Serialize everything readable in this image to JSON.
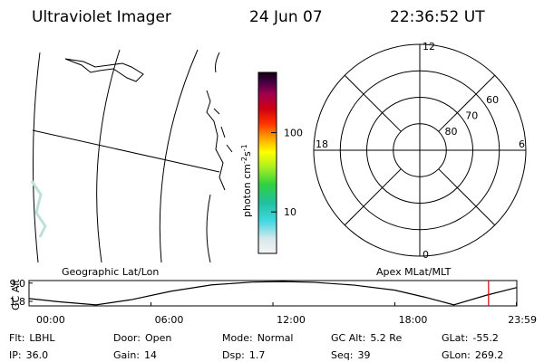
{
  "header": {
    "title": "Ultraviolet Imager",
    "date": "24 Jun 07",
    "time": "22:36:52 UT"
  },
  "colorbar": {
    "label": "photon cm",
    "label_exp1": "-2",
    "label_unit2": "s",
    "label_exp2": "-1",
    "scale": "log",
    "lim": [
      3,
      575
    ],
    "ticks": [
      10,
      100
    ]
  },
  "polar": {
    "rlim": [
      90,
      50
    ],
    "rings": [
      60,
      70,
      80
    ],
    "hours": [
      12,
      18,
      6,
      0
    ]
  },
  "orbit": {
    "left_title": "Geographic Lat/Lon",
    "right_title": "Apex MLat/MLT",
    "ylabel": "GC Alt",
    "ylim": [
      0,
      10
    ],
    "yticks": [
      {
        "value": 9,
        "label": "9.0"
      },
      {
        "value": 1.8,
        "label": "1.8"
      }
    ],
    "xlim": [
      0,
      24
    ],
    "xticks": [
      {
        "value": 0,
        "label": "00:00"
      },
      {
        "value": 6,
        "label": "06:00"
      },
      {
        "value": 12,
        "label": "12:00"
      },
      {
        "value": 18,
        "label": "18:00"
      },
      {
        "value": 23.98,
        "label": "23:59"
      }
    ],
    "x": [
      0,
      1.5,
      3.3,
      5,
      7,
      9,
      11,
      12.5,
      14,
      16,
      18,
      19.5,
      20.9,
      22.5,
      23.98
    ],
    "values": [
      2.9,
      1.6,
      0.4,
      2.4,
      5.8,
      8.3,
      9.4,
      9.6,
      9.3,
      8.2,
      6.2,
      3.4,
      0.4,
      4.2,
      7.2
    ],
    "color": "#000000",
    "marker_x": 22.61,
    "marker_color": "#dd0000"
  },
  "status": {
    "rows": [
      [
        {
          "label": "Flt:",
          "value": "LBHL"
        },
        {
          "label": "Door:",
          "value": "Open"
        },
        {
          "label": "Mode:",
          "value": "Normal"
        },
        {
          "label": "GC Alt:",
          "value": "5.2 Re"
        },
        {
          "label": "GLat:",
          "value": "-55.2"
        }
      ],
      [
        {
          "label": "IP:",
          "value": "36.0"
        },
        {
          "label": "Gain:",
          "value": "14"
        },
        {
          "label": "Dsp:",
          "value": "1.7"
        },
        {
          "label": "Seq:",
          "value": "39"
        },
        {
          "label": "GLon:",
          "value": "269.2"
        }
      ]
    ]
  }
}
